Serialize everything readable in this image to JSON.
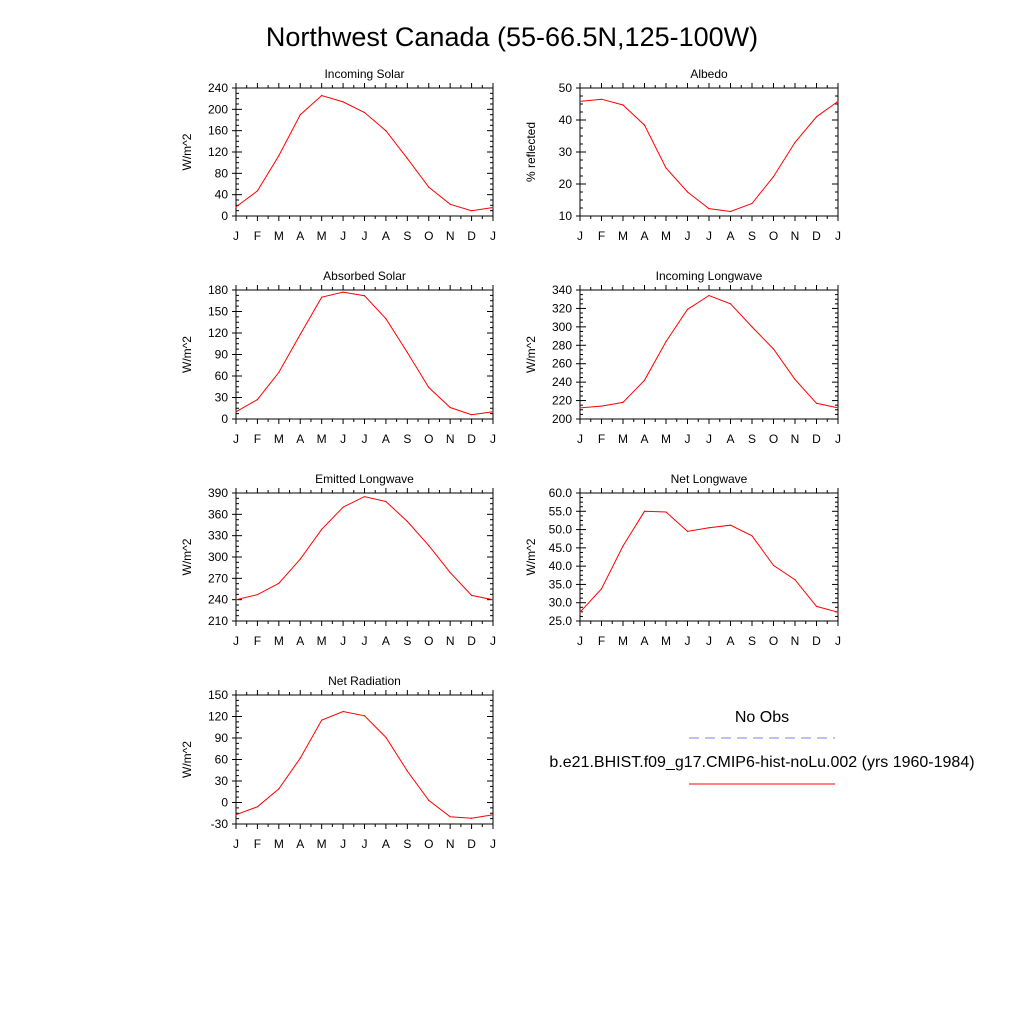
{
  "title": "Northwest Canada (55-66.5N,125-100W)",
  "months": [
    "J",
    "F",
    "M",
    "A",
    "M",
    "J",
    "J",
    "A",
    "S",
    "O",
    "N",
    "D",
    "J"
  ],
  "series_color": "#ff0000",
  "obs_color": "#7f7fff",
  "legend": {
    "obs_label": "No Obs",
    "model_label": "b.e21.BHIST.f09_g17.CMIP6-hist-noLu.002 (yrs 1960-1984)"
  },
  "chart_data": [
    {
      "type": "line",
      "title": "Incoming Solar",
      "ylabel": "W/m^2",
      "ylim": [
        0,
        240
      ],
      "yticks": [
        0,
        40,
        80,
        120,
        160,
        200,
        240
      ],
      "ytick_labels": [
        "0",
        "40",
        "80",
        "120",
        "160",
        "200",
        "240"
      ],
      "x": [
        "J",
        "F",
        "M",
        "A",
        "M",
        "J",
        "J",
        "A",
        "S",
        "O",
        "N",
        "D",
        "J"
      ],
      "series": [
        {
          "values": [
            17,
            47,
            113,
            190,
            226,
            214,
            194,
            160,
            108,
            54,
            22,
            10,
            16
          ]
        }
      ]
    },
    {
      "type": "line",
      "title": "Albedo",
      "ylabel": "% reflected",
      "ylim": [
        10,
        50
      ],
      "yticks": [
        10,
        20,
        30,
        40,
        50
      ],
      "ytick_labels": [
        "10",
        "20",
        "30",
        "40",
        "50"
      ],
      "x": [
        "J",
        "F",
        "M",
        "A",
        "M",
        "J",
        "J",
        "A",
        "S",
        "O",
        "N",
        "D",
        "J"
      ],
      "series": [
        {
          "values": [
            45.8,
            46.5,
            44.7,
            38.4,
            25.0,
            17.5,
            12.3,
            11.4,
            13.9,
            22.3,
            33.0,
            41.0,
            45.8
          ]
        }
      ]
    },
    {
      "type": "line",
      "title": "Absorbed Solar",
      "ylabel": "W/m^2",
      "ylim": [
        0,
        180
      ],
      "yticks": [
        0,
        30,
        60,
        90,
        120,
        150,
        180
      ],
      "ytick_labels": [
        "0",
        "30",
        "60",
        "90",
        "120",
        "150",
        "180"
      ],
      "x": [
        "J",
        "F",
        "M",
        "A",
        "M",
        "J",
        "J",
        "A",
        "S",
        "O",
        "N",
        "D",
        "J"
      ],
      "series": [
        {
          "values": [
            10,
            27,
            65,
            118,
            170,
            177,
            172,
            140,
            93,
            44,
            16,
            6,
            10
          ]
        }
      ]
    },
    {
      "type": "line",
      "title": "Incoming Longwave",
      "ylabel": "W/m^2",
      "ylim": [
        200,
        340
      ],
      "yticks": [
        200,
        220,
        240,
        260,
        280,
        300,
        320,
        340
      ],
      "ytick_labels": [
        "200",
        "220",
        "240",
        "260",
        "280",
        "300",
        "320",
        "340"
      ],
      "x": [
        "J",
        "F",
        "M",
        "A",
        "M",
        "J",
        "J",
        "A",
        "S",
        "O",
        "N",
        "D",
        "J"
      ],
      "series": [
        {
          "values": [
            212,
            214,
            218,
            242,
            284,
            319,
            334,
            325,
            300,
            276,
            243,
            217,
            212
          ]
        }
      ]
    },
    {
      "type": "line",
      "title": "Emitted Longwave",
      "ylabel": "W/m^2",
      "ylim": [
        210,
        390
      ],
      "yticks": [
        210,
        240,
        270,
        300,
        330,
        360,
        390
      ],
      "ytick_labels": [
        "210",
        "240",
        "270",
        "300",
        "330",
        "360",
        "390"
      ],
      "x": [
        "J",
        "F",
        "M",
        "A",
        "M",
        "J",
        "J",
        "A",
        "S",
        "O",
        "N",
        "D",
        "J"
      ],
      "series": [
        {
          "values": [
            240,
            247,
            263,
            297,
            339,
            370,
            385,
            378,
            350,
            316,
            278,
            246,
            240
          ]
        }
      ]
    },
    {
      "type": "line",
      "title": "Net Longwave",
      "ylabel": "W/m^2",
      "ylim": [
        25,
        60
      ],
      "yticks": [
        25,
        30,
        35,
        40,
        45,
        50,
        55,
        60
      ],
      "ytick_labels": [
        "25.0",
        "30.0",
        "35.0",
        "40.0",
        "45.0",
        "50.0",
        "55.0",
        "60.0"
      ],
      "x": [
        "J",
        "F",
        "M",
        "A",
        "M",
        "J",
        "J",
        "A",
        "S",
        "O",
        "N",
        "D",
        "J"
      ],
      "series": [
        {
          "values": [
            27.4,
            33.8,
            45.5,
            55.0,
            54.8,
            49.5,
            50.5,
            51.2,
            48.3,
            40.2,
            36.3,
            29.0,
            27.4
          ]
        }
      ]
    },
    {
      "type": "line",
      "title": "Net Radiation",
      "ylabel": "W/m^2",
      "ylim": [
        -30,
        150
      ],
      "yticks": [
        -30,
        0,
        30,
        60,
        90,
        120,
        150
      ],
      "ytick_labels": [
        "-30",
        "0",
        "30",
        "60",
        "90",
        "120",
        "150"
      ],
      "x": [
        "J",
        "F",
        "M",
        "A",
        "M",
        "J",
        "J",
        "A",
        "S",
        "O",
        "N",
        "D",
        "J"
      ],
      "series": [
        {
          "values": [
            -17,
            -6,
            19,
            62,
            115,
            127,
            121,
            91,
            44,
            3,
            -20,
            -22,
            -17
          ]
        }
      ]
    }
  ]
}
